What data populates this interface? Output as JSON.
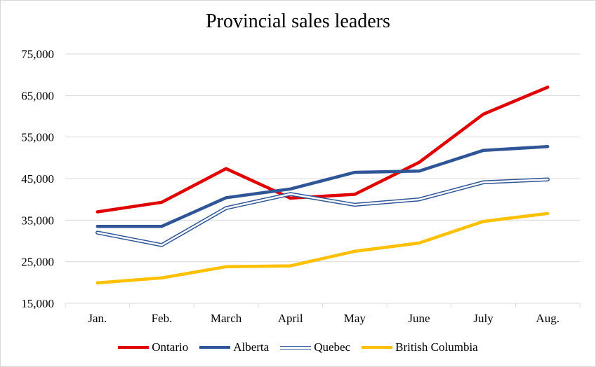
{
  "chart_data": {
    "type": "line",
    "title": "Provincial sales leaders",
    "xlabel": "",
    "ylabel": "",
    "categories": [
      "Jan.",
      "Feb.",
      "March",
      "April",
      "May",
      "June",
      "July",
      "Aug."
    ],
    "ylim": [
      15000,
      75000
    ],
    "yticks": [
      "15,000",
      "25,000",
      "35,000",
      "45,000",
      "55,000",
      "65,000",
      "75,000"
    ],
    "grid": true,
    "legend": "bottom",
    "series": [
      {
        "name": "Ontario",
        "color": "#e00000",
        "style": "solid",
        "values": [
          37000,
          39300,
          47400,
          40300,
          41200,
          48900,
          60500,
          67000
        ]
      },
      {
        "name": "Alberta",
        "color": "#2f5597",
        "style": "solid",
        "values": [
          33500,
          33500,
          40400,
          42500,
          46500,
          46800,
          51800,
          52700
        ]
      },
      {
        "name": "Quebec",
        "color": "#2f5597",
        "style": "double",
        "values": [
          32000,
          29000,
          37900,
          41300,
          38700,
          40000,
          44100,
          44800
        ]
      },
      {
        "name": "British Columbia",
        "color": "#ffc000",
        "style": "solid",
        "values": [
          19900,
          21100,
          23800,
          24000,
          27500,
          29500,
          34700,
          36600
        ]
      }
    ]
  }
}
